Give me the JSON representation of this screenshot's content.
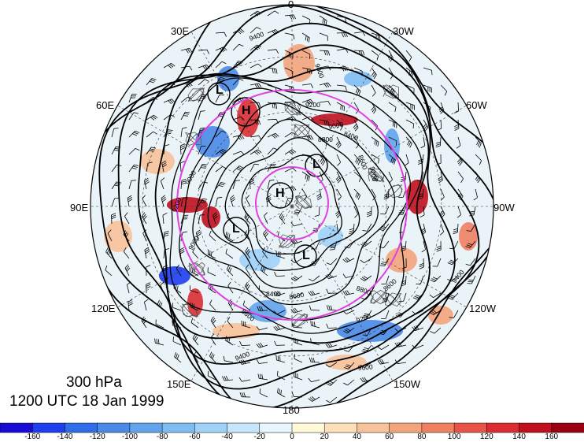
{
  "title": {
    "level": "300 hPa",
    "datetime": "1200 UTC 18 Jan 1999"
  },
  "map": {
    "projection": "north polar stereographic",
    "longitude_labels": {
      "top": "0",
      "top_left": "30E",
      "top_right": "30W",
      "upper_left": "60E",
      "upper_right": "60W",
      "left": "90E",
      "right": "90W",
      "lower_left": "120E",
      "lower_right": "120W",
      "bottom_left": "150E",
      "bottom_right": "150W",
      "bottom": "180"
    },
    "pressure_centers": [
      {
        "label": "L",
        "name": "low-near-scandinavia"
      },
      {
        "label": "H",
        "name": "high-west-russia"
      },
      {
        "label": "L",
        "name": "low-greenland"
      },
      {
        "label": "H",
        "name": "high-pole"
      },
      {
        "label": "L",
        "name": "low-siberia"
      },
      {
        "label": "L",
        "name": "low-canada"
      }
    ],
    "contour_labels": [
      "9400",
      "9200",
      "9000",
      "8800",
      "8600",
      "8400",
      "8600",
      "8800",
      "9200",
      "9400",
      "9000",
      "9200",
      "9000",
      "8800",
      "8600",
      "8400",
      "9400",
      "9600",
      "9000",
      "9200"
    ],
    "colors": {
      "contour": "#000000",
      "circle": "#e040e0",
      "land": "#555555"
    }
  },
  "colorbar": {
    "ticks": [
      "-160",
      "-140",
      "-120",
      "-100",
      "-80",
      "-60",
      "-40",
      "-20",
      "0",
      "20",
      "40",
      "60",
      "80",
      "100",
      "120",
      "140",
      "160"
    ],
    "colors": [
      "#1a0ad6",
      "#1e3ef0",
      "#2f6ee8",
      "#4a8ae6",
      "#62a4ec",
      "#7fbcf2",
      "#a0d2f8",
      "#c6e6fc",
      "#e8f6ff",
      "#fff9d8",
      "#fde0b8",
      "#f8c29a",
      "#f4a47c",
      "#ef8060",
      "#e85448",
      "#dc2c32",
      "#c0101e",
      "#9a0012"
    ]
  }
}
